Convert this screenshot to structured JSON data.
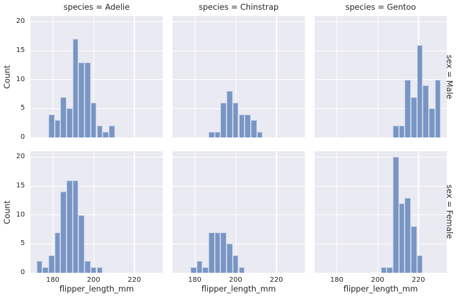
{
  "chart_data": {
    "type": "bar",
    "chart_kind": "faceted_histogram",
    "title": "",
    "xlabel": "flipper_length_mm",
    "ylabel": "Count",
    "xlim": [
      169.05,
      233.95
    ],
    "ylim": [
      0,
      21
    ],
    "xticks": [
      180,
      200,
      220
    ],
    "yticks": [
      0,
      5,
      10,
      15,
      20
    ],
    "bin_width": 2.95,
    "grid": "on",
    "legend": "none",
    "col_titles": [
      "species = Adelie",
      "species = Chinstrap",
      "species = Gentoo"
    ],
    "row_labels": [
      "sex = Male",
      "sex = Female"
    ],
    "facets": [
      {
        "row": 0,
        "col": 0,
        "species": "Adelie",
        "sex": "Male",
        "bin_start": 177.9,
        "counts": [
          4,
          3,
          7,
          5,
          17,
          13,
          13,
          6,
          2,
          1,
          2
        ]
      },
      {
        "row": 0,
        "col": 1,
        "species": "Chinstrap",
        "sex": "Male",
        "bin_start": 186.75,
        "counts": [
          1,
          1,
          6,
          8,
          6,
          4,
          4,
          3,
          1
        ]
      },
      {
        "row": 0,
        "col": 2,
        "species": "Gentoo",
        "sex": "Male",
        "bin_start": 207.4,
        "counts": [
          2,
          2,
          10,
          7,
          16,
          9,
          5,
          10
        ]
      },
      {
        "row": 1,
        "col": 0,
        "species": "Adelie",
        "sex": "Female",
        "bin_start": 172.0,
        "counts": [
          2,
          1,
          3,
          7,
          14,
          16,
          16,
          10,
          2,
          1,
          1
        ]
      },
      {
        "row": 1,
        "col": 1,
        "species": "Chinstrap",
        "sex": "Female",
        "bin_start": 177.9,
        "counts": [
          1,
          2,
          1,
          7,
          7,
          7,
          5,
          3,
          1
        ]
      },
      {
        "row": 1,
        "col": 2,
        "species": "Gentoo",
        "sex": "Female",
        "bin_start": 201.5,
        "counts": [
          1,
          1,
          20,
          12,
          13,
          8,
          3
        ]
      }
    ],
    "colors": {
      "bar": "#7995c4",
      "bar_edge": "rgba(255,255,255,0.55)",
      "axes_background": "#eaeaf2",
      "grid": "#ffffff",
      "text": "#262626",
      "figure_background": "#ffffff"
    }
  }
}
